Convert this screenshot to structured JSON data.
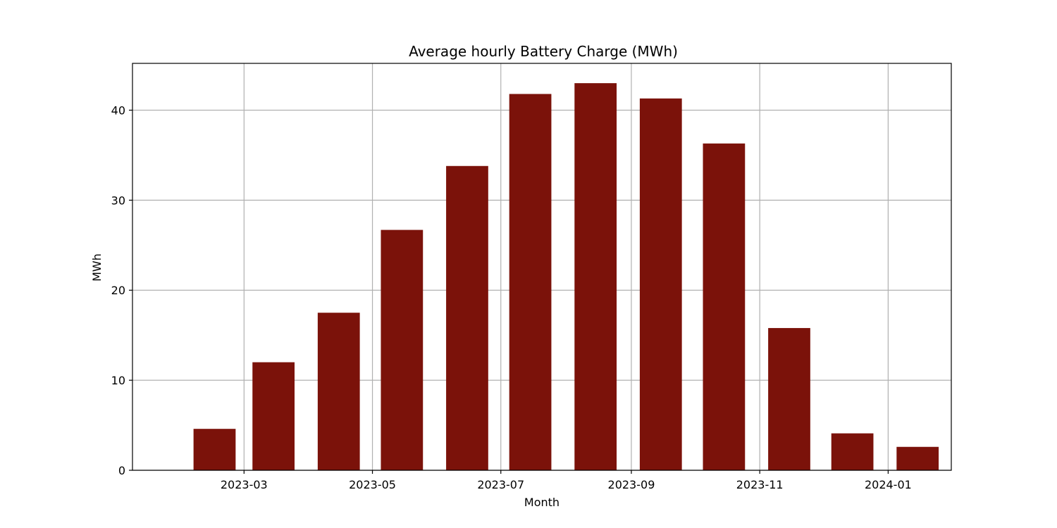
{
  "chart_data": {
    "type": "bar",
    "title": "Average hourly Battery Charge (MWh)",
    "xlabel": "Month",
    "ylabel": "MWh",
    "bar_color": "#7b120a",
    "grid": true,
    "categories": [
      "2023-02",
      "2023-03",
      "2023-04",
      "2023-05",
      "2023-06",
      "2023-07",
      "2023-08",
      "2023-09",
      "2023-10",
      "2023-11",
      "2023-12",
      "2024-01"
    ],
    "values": [
      4.6,
      12.0,
      17.5,
      26.7,
      33.8,
      41.8,
      43.0,
      41.3,
      36.3,
      15.8,
      4.1,
      2.6
    ],
    "x_ticks": [
      "2023-03",
      "2023-05",
      "2023-07",
      "2023-09",
      "2023-11",
      "2024-01"
    ],
    "y_ticks": [
      0,
      10,
      20,
      30,
      40
    ],
    "xlim": [
      "2023-01-07",
      "2024-01-31"
    ],
    "ylim": [
      0,
      45.2
    ]
  }
}
